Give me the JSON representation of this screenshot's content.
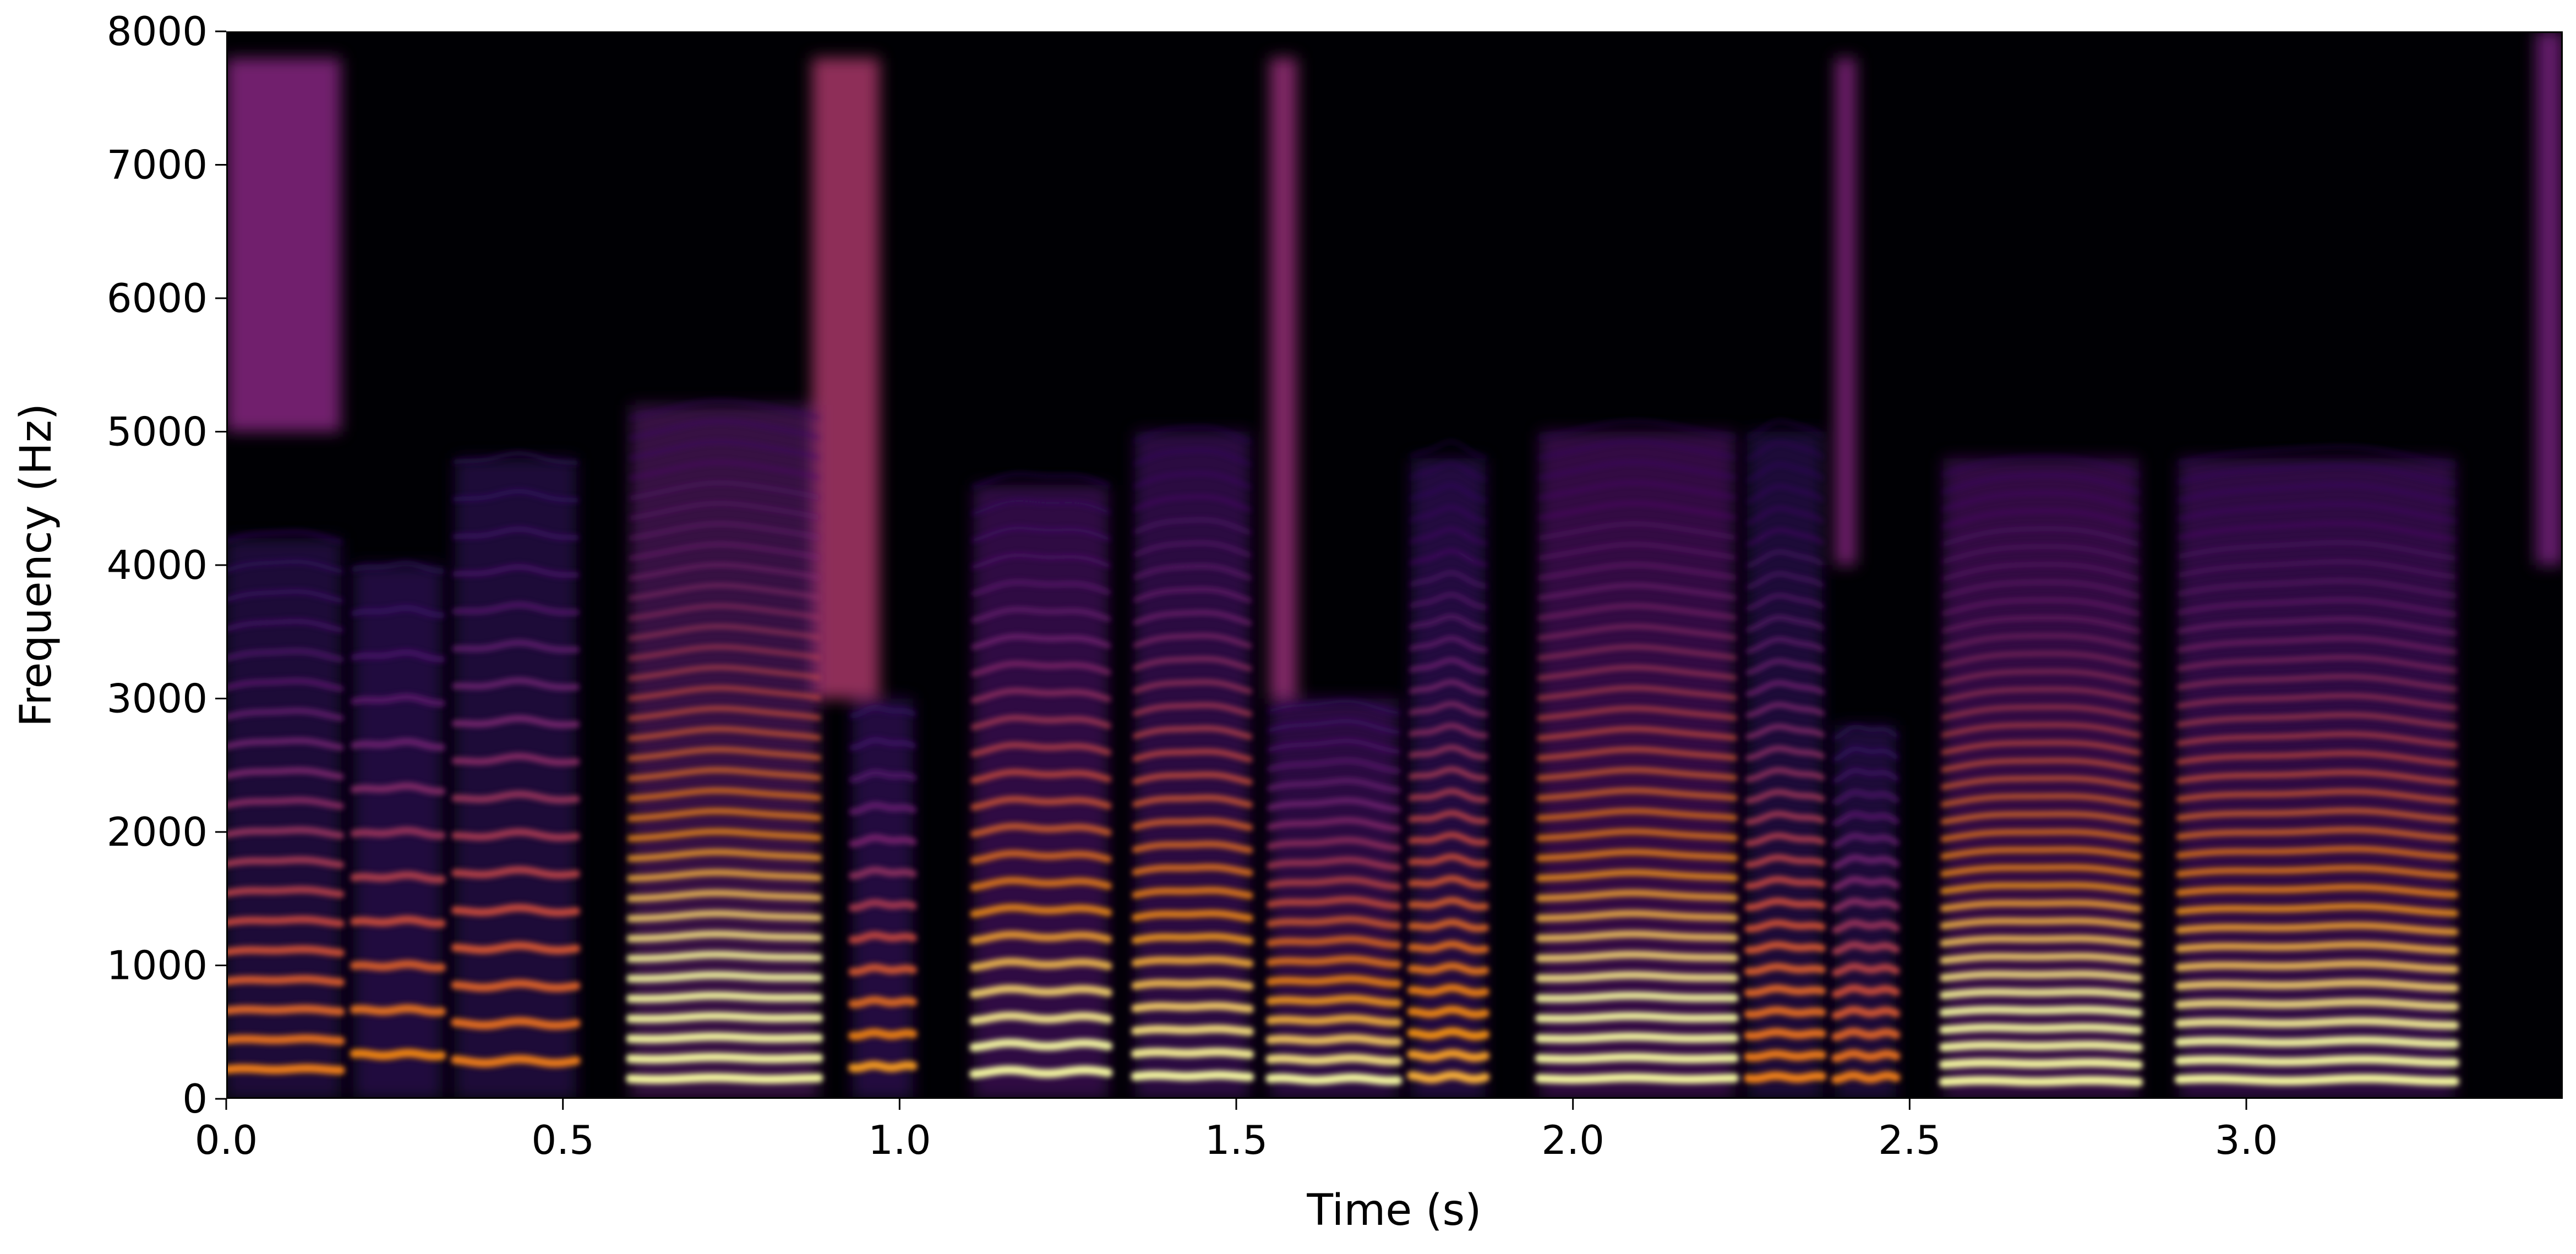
{
  "chart_data": {
    "type": "heatmap",
    "title": "",
    "xlabel": "Time (s)",
    "ylabel": "Frequency (Hz)",
    "xlim": [
      0,
      3.47
    ],
    "ylim": [
      0,
      8000
    ],
    "x_ticks": [
      0.0,
      0.5,
      1.0,
      1.5,
      2.0,
      2.5,
      3.0
    ],
    "x_tick_labels": [
      "0.0",
      "0.5",
      "1.0",
      "1.5",
      "2.0",
      "2.5",
      "3.0"
    ],
    "y_ticks": [
      0,
      1000,
      2000,
      3000,
      4000,
      5000,
      6000,
      7000,
      8000
    ],
    "y_tick_labels": [
      "0",
      "1000",
      "2000",
      "3000",
      "4000",
      "5000",
      "6000",
      "7000",
      "8000"
    ],
    "colormap": "inferno",
    "colors": {
      "background": "#000004",
      "low": "#3b0f70",
      "mid": "#b5367a",
      "high": "#f98e09",
      "peak": "#fcffa4"
    },
    "grid": false,
    "legend": "none",
    "voiced_segments": [
      {
        "start": 0.0,
        "end": 0.17,
        "f0": 220,
        "max_freq": 4200,
        "intensity": 0.6
      },
      {
        "start": 0.19,
        "end": 0.32,
        "f0": 330,
        "max_freq": 4000,
        "intensity": 0.65
      },
      {
        "start": 0.34,
        "end": 0.52,
        "f0": 280,
        "max_freq": 4800,
        "intensity": 0.6
      },
      {
        "start": 0.6,
        "end": 0.88,
        "f0": 150,
        "max_freq": 5200,
        "intensity": 1.0
      },
      {
        "start": 0.93,
        "end": 1.02,
        "f0": 240,
        "max_freq": 3000,
        "intensity": 0.7
      },
      {
        "start": 1.11,
        "end": 1.31,
        "f0": 200,
        "max_freq": 4600,
        "intensity": 0.9
      },
      {
        "start": 1.35,
        "end": 1.52,
        "f0": 170,
        "max_freq": 5000,
        "intensity": 0.85
      },
      {
        "start": 1.55,
        "end": 1.74,
        "f0": 145,
        "max_freq": 3000,
        "intensity": 0.85
      },
      {
        "start": 1.76,
        "end": 1.87,
        "f0": 160,
        "max_freq": 4800,
        "intensity": 0.7
      },
      {
        "start": 1.95,
        "end": 2.24,
        "f0": 150,
        "max_freq": 5000,
        "intensity": 0.95
      },
      {
        "start": 2.26,
        "end": 2.37,
        "f0": 160,
        "max_freq": 5000,
        "intensity": 0.6
      },
      {
        "start": 2.39,
        "end": 2.48,
        "f0": 160,
        "max_freq": 2800,
        "intensity": 0.6
      },
      {
        "start": 2.55,
        "end": 2.84,
        "f0": 130,
        "max_freq": 4800,
        "intensity": 0.95
      },
      {
        "start": 2.9,
        "end": 3.31,
        "f0": 140,
        "max_freq": 4800,
        "intensity": 0.9
      }
    ],
    "fricative_segments": [
      {
        "start": 0.0,
        "end": 0.17,
        "low_freq": 5000,
        "high_freq": 7800,
        "intensity": 0.45
      },
      {
        "start": 0.87,
        "end": 0.97,
        "low_freq": 3000,
        "high_freq": 7800,
        "intensity": 0.55
      },
      {
        "start": 1.55,
        "end": 1.59,
        "low_freq": 3000,
        "high_freq": 7800,
        "intensity": 0.5
      },
      {
        "start": 2.39,
        "end": 2.42,
        "low_freq": 4000,
        "high_freq": 7800,
        "intensity": 0.45
      },
      {
        "start": 3.43,
        "end": 3.47,
        "low_freq": 4000,
        "high_freq": 8000,
        "intensity": 0.4
      }
    ]
  }
}
